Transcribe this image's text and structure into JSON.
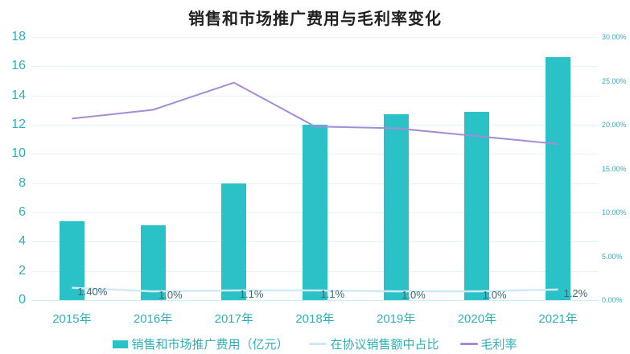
{
  "title": "销售和市场推广费用与毛利率变化",
  "colors": {
    "bar": "#2AC2C6",
    "margin_line": "#A48CD6",
    "ratio_line": "#CFEAF4",
    "grid": "#E2F6F8",
    "axis_line": "#CDEFF2",
    "teal_text": "#2FAFB8",
    "data_label": "#3D6575",
    "title_text": "#212121"
  },
  "chart_data": {
    "type": "bar",
    "combo": "bar + two lines, dual axis",
    "categories": [
      "2015年",
      "2016年",
      "2017年",
      "2018年",
      "2019年",
      "2020年",
      "2021年"
    ],
    "series": [
      {
        "name": "销售和市场推广费用（亿元）",
        "type": "bar",
        "axis": "left",
        "values": [
          5.4,
          5.1,
          8.0,
          12.0,
          12.7,
          12.9,
          16.6
        ]
      },
      {
        "name": "在协议销售额中占比",
        "type": "line",
        "axis": "right",
        "values": [
          1.4,
          1.0,
          1.1,
          1.1,
          1.0,
          1.0,
          1.2
        ],
        "point_labels": [
          "1.40%",
          "1.0%",
          "1.1%",
          "1.1%",
          "1.0%",
          "1.0%",
          "1.2%"
        ]
      },
      {
        "name": "毛利率",
        "type": "line",
        "axis": "right",
        "values": [
          20.7,
          21.7,
          24.8,
          19.8,
          19.6,
          18.7,
          17.8
        ]
      }
    ],
    "title": "销售和市场推广费用与毛利率变化",
    "xlabel": "",
    "ylabel_left": "",
    "ylabel_right": "",
    "left_axis": {
      "min": 0,
      "max": 18,
      "step": 2
    },
    "right_axis": {
      "min": 0,
      "max": 30,
      "step": 5,
      "tick_labels": [
        "0.00%",
        "5.00%",
        "10.00%",
        "15.00%",
        "20.00%",
        "25.00%",
        "30.00%"
      ]
    },
    "grid": "horizontal only",
    "legend_position": "bottom"
  },
  "legend": {
    "items": [
      {
        "label": "销售和市场推广费用（亿元）",
        "marker": "bar-swatch"
      },
      {
        "label": "在协议销售额中占比",
        "marker": "line-swatch"
      },
      {
        "label": "毛利率",
        "marker": "line-swatch"
      }
    ]
  }
}
